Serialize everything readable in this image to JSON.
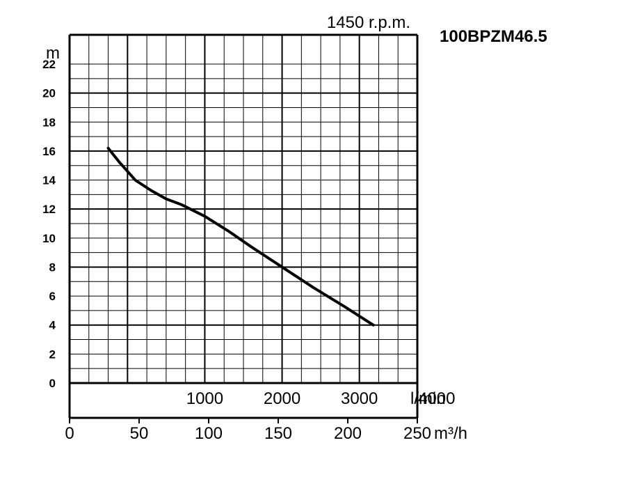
{
  "chart_data": {
    "type": "line",
    "speed_label": "1450 r.p.m.",
    "model_label": "100BPZM46.5",
    "y_unit": "m",
    "x_unit_primary": "l/min",
    "x_unit_secondary": "m³/h",
    "ylim": [
      0,
      22
    ],
    "yticks": [
      "0",
      "2",
      "4",
      "6",
      "8",
      "10",
      "12",
      "14",
      "16",
      "18",
      "20",
      "22"
    ],
    "xlim_lmin": [
      -750,
      3750
    ],
    "xticks_primary": [
      {
        "value": 1000,
        "label": "1000"
      },
      {
        "value": 2000,
        "label": "2000"
      },
      {
        "value": 3000,
        "label": "3000"
      },
      {
        "value": 4000,
        "label": "4000"
      }
    ],
    "xticks_secondary": [
      {
        "value": 0,
        "label": "0"
      },
      {
        "value": 50,
        "label": "50"
      },
      {
        "value": 100,
        "label": "100"
      },
      {
        "value": 150,
        "label": "150"
      },
      {
        "value": 200,
        "label": "200"
      },
      {
        "value": 250,
        "label": "250"
      }
    ],
    "grid": true,
    "series": [
      {
        "x": [
          -250,
          -100,
          0,
          100,
          300,
          500,
          700,
          1000,
          1300,
          1600,
          2000,
          2400,
          2800,
          3180
        ],
        "y": [
          16.2,
          15.2,
          14.6,
          14.0,
          13.3,
          12.7,
          12.3,
          11.5,
          10.5,
          9.4,
          8.0,
          6.6,
          5.3,
          4.0
        ]
      }
    ]
  }
}
